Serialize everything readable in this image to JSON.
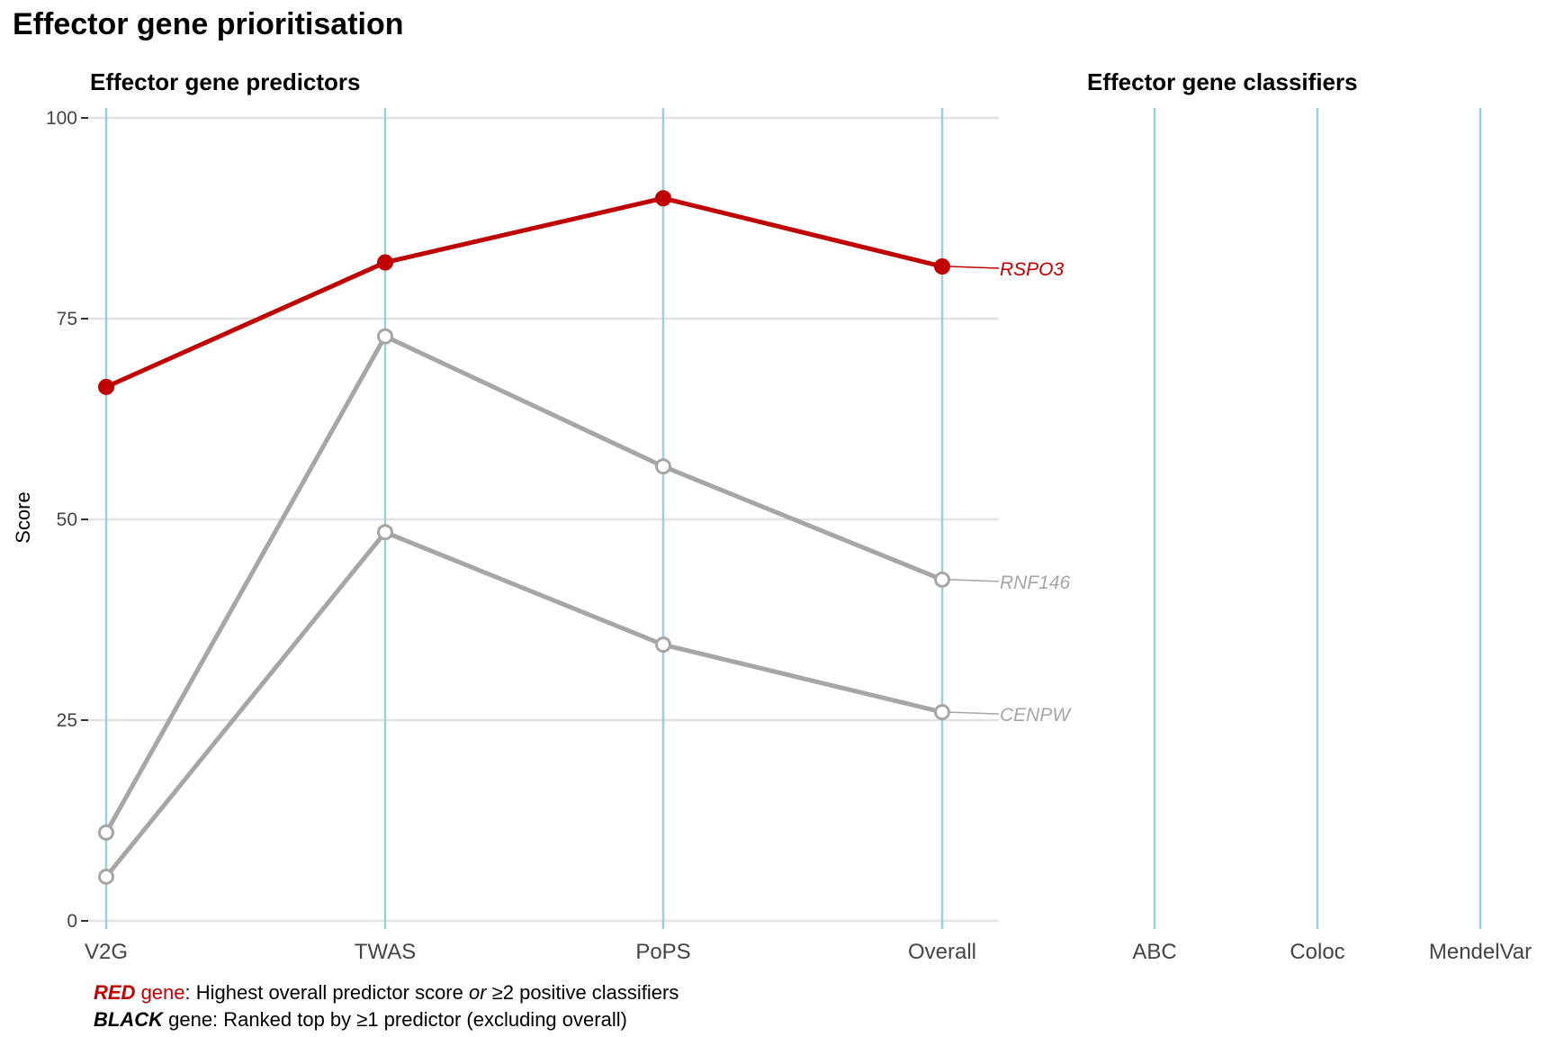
{
  "title": "Effector gene prioritisation",
  "colors": {
    "highlight": "#c00000",
    "other": "#a6a6a6",
    "axis_line": "#9ecfdc",
    "grid": "#e3e3e3"
  },
  "chart_data": [
    {
      "type": "line",
      "title": "Effector gene predictors",
      "ylabel": "Score",
      "ylim": [
        0,
        100
      ],
      "yticks": [
        0,
        25,
        50,
        75,
        100
      ],
      "categories": [
        "V2G",
        "TWAS",
        "PoPS",
        "Overall"
      ],
      "grid": true,
      "series": [
        {
          "name": "RSPO3",
          "color": "#c00000",
          "highlight": true,
          "values": [
            66.5,
            82,
            90,
            81.5
          ]
        },
        {
          "name": "RNF146",
          "color": "#a6a6a6",
          "highlight": false,
          "values": [
            11,
            72.8,
            56.6,
            42.5
          ]
        },
        {
          "name": "CENPW",
          "color": "#a6a6a6",
          "highlight": false,
          "values": [
            5.5,
            48.4,
            34.4,
            26
          ]
        }
      ]
    },
    {
      "type": "line",
      "title": "Effector gene classifiers",
      "categories": [
        "ABC",
        "Coloc",
        "MendelVar"
      ],
      "series": []
    }
  ],
  "footnote": {
    "line1_bold": "RED",
    "line1_gene": " gene",
    "line1_text_a": ": Highest overall predictor score ",
    "line1_italic": "or",
    "line1_text_b": " ≥2 positive classifiers",
    "line2_bold": "BLACK",
    "line2_text": " gene: Ranked top by ≥1 predictor (excluding overall)"
  }
}
